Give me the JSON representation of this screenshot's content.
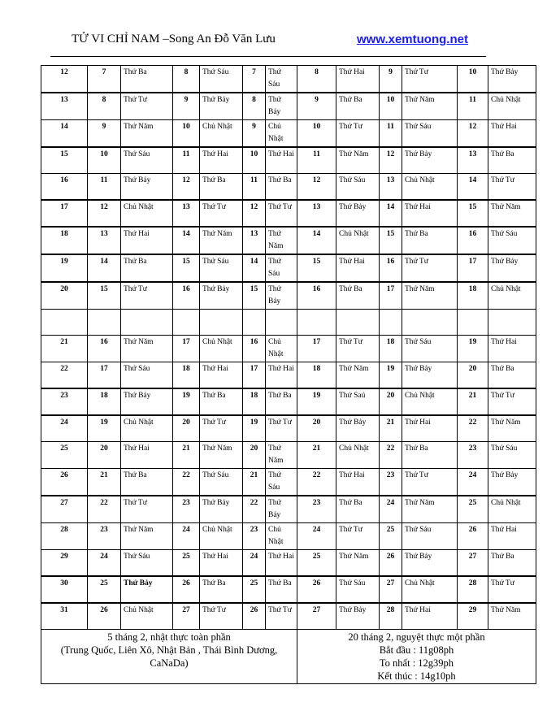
{
  "header": {
    "title": "TỬ VI CHỈ NAM –Song An Đỗ Văn Lưu",
    "link": "www.xemtuong.net"
  },
  "rows": [
    [
      "12",
      "7",
      "Thứ Ba",
      "8",
      "Thứ Sáu",
      "7",
      "Thứ Sáu",
      "8",
      "Thứ Hai",
      "9",
      "Thứ Tư",
      "10",
      "Thứ Bảy"
    ],
    [
      "13",
      "8",
      "Thứ Tư",
      "9",
      "Thứ Bảy",
      "8",
      "Thứ Bảy",
      "9",
      "Thứ Ba",
      "10",
      "Thứ Năm",
      "11",
      "Chủ Nhật"
    ],
    [
      "14",
      "9",
      "Thứ Năm",
      "10",
      "Chủ Nhật",
      "9",
      "Chủ Nhật",
      "10",
      "Thứ Tư",
      "11",
      "Thứ Sáu",
      "12",
      "Thứ Hai"
    ],
    [
      "15",
      "10",
      "Thứ Sáu",
      "11",
      "Thứ Hai",
      "10",
      "Thứ Hai",
      "11",
      "Thứ Năm",
      "12",
      "Thứ Bảy",
      "13",
      "Thứ Ba"
    ],
    [
      "16",
      "11",
      "Thứ Bảy",
      "12",
      "Thứ Ba",
      "11",
      "Thứ Ba",
      "12",
      "Thứ Sáu",
      "13",
      "Chủ Nhật",
      "14",
      "Thứ Tư"
    ],
    [
      "17",
      "12",
      "Chủ Nhật",
      "13",
      "Thứ Tư",
      "12",
      "Thứ Tư",
      "13",
      "Thứ Bảy",
      "14",
      "Thứ Hai",
      "15",
      "Thứ Năm"
    ],
    [
      "18",
      "13",
      "Thứ Hai",
      "14",
      "Thứ Năm",
      "13",
      "Thứ Năm",
      "14",
      "Chủ Nhật",
      "15",
      "Thứ Ba",
      "16",
      "Thứ Sáu"
    ],
    [
      "19",
      "14",
      "Thứ Ba",
      "15",
      "Thứ Sáu",
      "14",
      "Thứ Sáu",
      "15",
      "Thứ Hai",
      "16",
      "Thứ Tư",
      "17",
      "Thứ Bảy"
    ],
    [
      "20",
      "15",
      "Thứ Tư",
      "16",
      "Thứ Bảy",
      "15",
      "Thứ Bảy",
      "16",
      "Thứ Ba",
      "17",
      "Thứ Năm",
      "18",
      "Chủ Nhật"
    ],
    [
      "",
      "",
      "",
      "",
      "",
      "",
      "",
      "",
      "",
      "",
      "",
      "",
      ""
    ],
    [
      "21",
      "16",
      "Thứ Năm",
      "17",
      "Chủ Nhật",
      "16",
      "Chủ Nhật",
      "17",
      "Thứ Tư",
      "18",
      "Thứ Sáu",
      "19",
      "Thứ Hai"
    ],
    [
      "22",
      "17",
      "Thứ Sáu",
      "18",
      "Thứ Hai",
      "17",
      "Thứ Hai",
      "18",
      "Thứ Năm",
      "19",
      "Thứ Bảy",
      "20",
      "Thứ Ba"
    ],
    [
      "23",
      "18",
      "Thứ Bảy",
      "19",
      "Thứ Ba",
      "18",
      "Thứ Ba",
      "19",
      "Thứ Saú",
      "20",
      "Chủ Nhật",
      "21",
      "Thứ Tư"
    ],
    [
      "24",
      "19",
      "Chủ Nhật",
      "20",
      "Thứ Tư",
      "19",
      "Thứ Tư",
      "20",
      "Thứ Bảy",
      "21",
      "Thứ Hai",
      "22",
      "Thứ Năm"
    ],
    [
      "25",
      "20",
      "Thứ Hai",
      "21",
      "Thứ Năm",
      "20",
      "Thứ Năm",
      "21",
      "Chủ Nhật",
      "22",
      "Thứ Ba",
      "23",
      "Thứ Sáu"
    ],
    [
      "26",
      "21",
      "Thứ Ba",
      "22",
      "Thứ Sáu",
      "21",
      "Thứ Sáu",
      "22",
      "Thứ Hai",
      "23",
      "Thứ Tư",
      "24",
      "Thứ Bảy"
    ],
    [
      "27",
      "22",
      "Thứ Tư",
      "23",
      "Thứ Bảy",
      "22",
      "Thứ Bảy",
      "23",
      "Thứ Ba",
      "24",
      "Thứ Năm",
      "25",
      "Chủ Nhật"
    ],
    [
      "28",
      "23",
      "Thứ Năm",
      "24",
      "Chủ Nhật",
      "23",
      "Chủ Nhật",
      "24",
      "Thứ Tư",
      "25",
      "Thứ Sáu",
      "26",
      "Thứ Hai"
    ],
    [
      "29",
      "24",
      "Thứ Sáu",
      "25",
      "Thứ Hai",
      "24",
      "Thứ Hai",
      "25",
      "Thứ Năm",
      "26",
      "Thứ Bảy",
      "27",
      "Thứ Ba"
    ],
    [
      "30",
      "25",
      "Thứ Bảy",
      "26",
      "Thứ Ba",
      "25",
      "Thứ Ba",
      "26",
      "Thứ Sáu",
      "27",
      "Chủ Nhật",
      "28",
      "Thứ Tư"
    ],
    [
      "31",
      "26",
      "Chủ Nhật",
      "27",
      "Thứ Tư",
      "26",
      "Thứ Tư",
      "27",
      "Thứ Bảy",
      "28",
      "Thứ Hai",
      "29",
      "Thứ Năm"
    ]
  ],
  "footer": {
    "left": [
      "5 tháng 2, nhật thực toàn phần",
      "(Trung Quốc, Liên Xô, Nhật Bản , Thái Bình Dương,",
      "CaNaDa)"
    ],
    "right": [
      "20 tháng 2, nguyệt thực một phần",
      "Bắt đầu : 11g08ph",
      "To nhất : 12g39ph",
      "Kết thúc : 14g10ph"
    ]
  }
}
